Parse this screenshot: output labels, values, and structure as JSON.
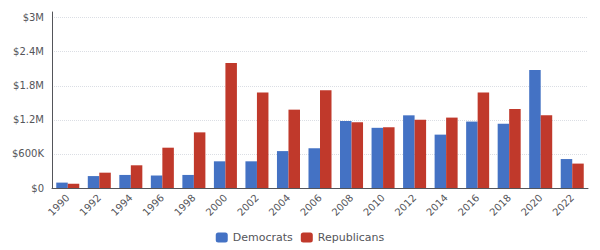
{
  "chart_data": {
    "type": "bar",
    "categories": [
      "1990",
      "1992",
      "1994",
      "1996",
      "1998",
      "2000",
      "2002",
      "2004",
      "2006",
      "2008",
      "2010",
      "2012",
      "2014",
      "2016",
      "2018",
      "2020",
      "2022"
    ],
    "series": [
      {
        "name": "Democrats",
        "color": "#4472C4",
        "values": [
          95000,
          210000,
          230000,
          220000,
          230000,
          470000,
          470000,
          650000,
          700000,
          1180000,
          1060000,
          1280000,
          940000,
          1170000,
          1130000,
          2080000,
          510000
        ]
      },
      {
        "name": "Republicans",
        "color": "#C0392B",
        "values": [
          75000,
          270000,
          400000,
          710000,
          980000,
          2200000,
          1680000,
          1380000,
          1720000,
          1160000,
          1070000,
          1200000,
          1240000,
          1680000,
          1390000,
          1280000,
          430000
        ]
      }
    ],
    "ylim": [
      0,
      3100000
    ],
    "yticks": [
      {
        "value": 0,
        "label": "$0"
      },
      {
        "value": 600000,
        "label": "$600K"
      },
      {
        "value": 1200000,
        "label": "$1.2M"
      },
      {
        "value": 1800000,
        "label": "$1.8M"
      },
      {
        "value": 2400000,
        "label": "$2.4M"
      },
      {
        "value": 3000000,
        "label": "$3M"
      }
    ],
    "grid": true,
    "legend": "bottom"
  }
}
